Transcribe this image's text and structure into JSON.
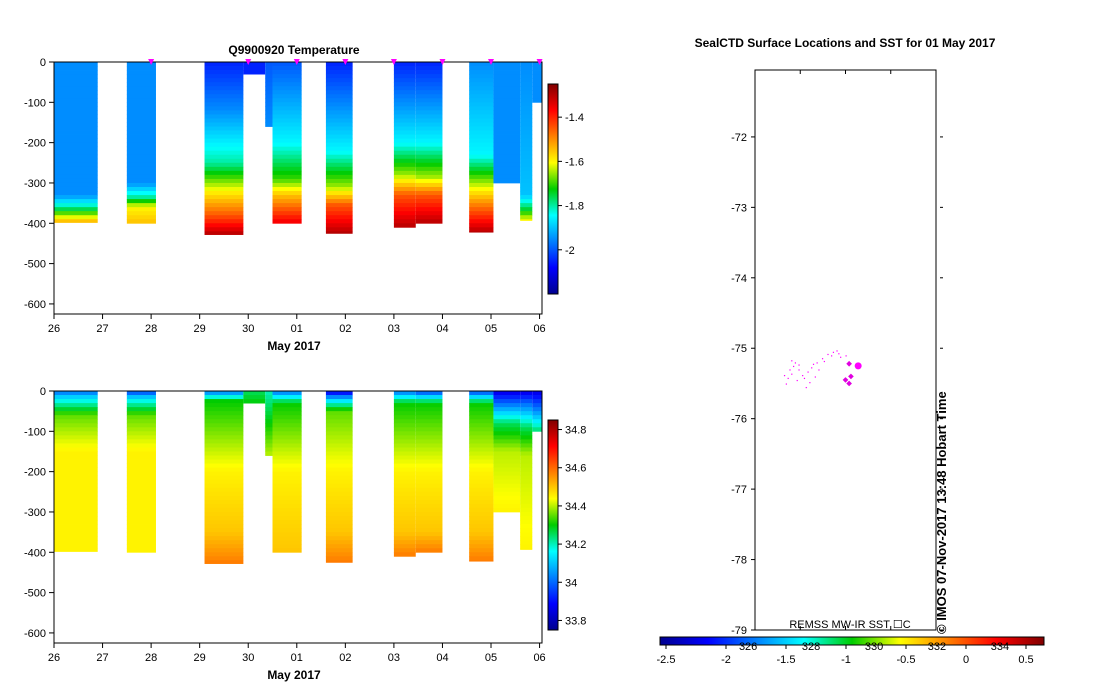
{
  "chart_data": [
    {
      "type": "heatmap",
      "title": "Q9900920  Temperature",
      "xlabel": "May 2017",
      "ylabel": "",
      "x_ticks": [
        "26",
        "27",
        "28",
        "29",
        "30",
        "01",
        "02",
        "03",
        "04",
        "05",
        "06"
      ],
      "x_range_days": [
        0,
        10.05
      ],
      "y_ticks": [
        "0",
        "-100",
        "-200",
        "-300",
        "-400",
        "-500",
        "-600"
      ],
      "ylim": [
        -625,
        0
      ],
      "colorbar": {
        "ticks": [
          "-1.4",
          "-1.6",
          "-1.8",
          "-2"
        ],
        "range": [
          -2.2,
          -1.25
        ]
      },
      "surfacing_markers_days": [
        2.0,
        4.0,
        5.0,
        6.0,
        7.0,
        8.0,
        9.0,
        10.0
      ],
      "profiles": [
        {
          "start_day": 0.0,
          "end_day": 0.9,
          "max_depth": 398,
          "top_value": -1.95,
          "layers": [
            [
              0,
              -1.95
            ],
            [
              330,
              -1.95
            ],
            [
              360,
              -1.8
            ],
            [
              380,
              -1.65
            ],
            [
              395,
              -1.55
            ]
          ]
        },
        {
          "start_day": 1.5,
          "end_day": 2.1,
          "max_depth": 400,
          "top_value": -1.95,
          "layers": [
            [
              0,
              -1.95
            ],
            [
              300,
              -1.95
            ],
            [
              335,
              -1.8
            ],
            [
              360,
              -1.6
            ],
            [
              398,
              -1.55
            ]
          ]
        },
        {
          "start_day": 3.1,
          "end_day": 3.9,
          "max_depth": 428,
          "top_value": -2.05,
          "layers": [
            [
              0,
              -2.05
            ],
            [
              120,
              -1.95
            ],
            [
              250,
              -1.8
            ],
            [
              320,
              -1.6
            ],
            [
              380,
              -1.45
            ],
            [
              428,
              -1.3
            ]
          ]
        },
        {
          "start_day": 3.9,
          "end_day": 4.35,
          "max_depth": 30,
          "top_value": -2.05,
          "layers": [
            [
              0,
              -2.05
            ],
            [
              30,
              -2.05
            ]
          ]
        },
        {
          "start_day": 4.35,
          "end_day": 4.5,
          "max_depth": 160,
          "top_value": -2.0,
          "layers": [
            [
              0,
              -2.0
            ],
            [
              160,
              -1.95
            ]
          ]
        },
        {
          "start_day": 4.5,
          "end_day": 5.1,
          "max_depth": 400,
          "top_value": -2.0,
          "layers": [
            [
              0,
              -2.0
            ],
            [
              200,
              -1.85
            ],
            [
              290,
              -1.7
            ],
            [
              330,
              -1.55
            ],
            [
              400,
              -1.35
            ]
          ]
        },
        {
          "start_day": 5.6,
          "end_day": 6.15,
          "max_depth": 425,
          "top_value": -2.05,
          "layers": [
            [
              0,
              -2.05
            ],
            [
              220,
              -1.85
            ],
            [
              310,
              -1.65
            ],
            [
              355,
              -1.45
            ],
            [
              425,
              -1.3
            ]
          ]
        },
        {
          "start_day": 7.0,
          "end_day": 7.45,
          "max_depth": 410,
          "top_value": -2.05,
          "layers": [
            [
              0,
              -2.05
            ],
            [
              200,
              -1.85
            ],
            [
              280,
              -1.65
            ],
            [
              330,
              -1.45
            ],
            [
              410,
              -1.3
            ]
          ]
        },
        {
          "start_day": 7.45,
          "end_day": 8.0,
          "max_depth": 400,
          "top_value": -2.05,
          "layers": [
            [
              0,
              -2.05
            ],
            [
              200,
              -1.85
            ],
            [
              285,
              -1.65
            ],
            [
              330,
              -1.45
            ],
            [
              400,
              -1.3
            ]
          ]
        },
        {
          "start_day": 8.55,
          "end_day": 9.05,
          "max_depth": 422,
          "top_value": -1.95,
          "layers": [
            [
              0,
              -1.95
            ],
            [
              230,
              -1.85
            ],
            [
              300,
              -1.65
            ],
            [
              350,
              -1.5
            ],
            [
              422,
              -1.3
            ]
          ]
        },
        {
          "start_day": 9.05,
          "end_day": 9.6,
          "max_depth": 300,
          "top_value": -1.95,
          "layers": [
            [
              0,
              -1.95
            ],
            [
              300,
              -1.95
            ]
          ]
        },
        {
          "start_day": 9.6,
          "end_day": 9.85,
          "max_depth": 393,
          "top_value": -1.95,
          "layers": [
            [
              0,
              -1.95
            ],
            [
              330,
              -1.9
            ],
            [
              365,
              -1.75
            ],
            [
              393,
              -1.6
            ]
          ]
        },
        {
          "start_day": 9.85,
          "end_day": 10.05,
          "max_depth": 100,
          "top_value": -1.95,
          "layers": [
            [
              0,
              -1.95
            ],
            [
              100,
              -1.95
            ]
          ]
        }
      ]
    },
    {
      "type": "heatmap",
      "title": "",
      "xlabel": "May 2017",
      "ylabel": "",
      "x_ticks": [
        "26",
        "27",
        "28",
        "29",
        "30",
        "01",
        "02",
        "03",
        "04",
        "05",
        "06"
      ],
      "x_range_days": [
        0,
        10.05
      ],
      "y_ticks": [
        "0",
        "-100",
        "-200",
        "-300",
        "-400",
        "-500",
        "-600"
      ],
      "ylim": [
        -625,
        0
      ],
      "colorbar": {
        "ticks": [
          "34.8",
          "34.6",
          "34.4",
          "34.2",
          "34",
          "33.8"
        ],
        "range": [
          33.75,
          34.85
        ]
      },
      "profiles": [
        {
          "start_day": 0.0,
          "end_day": 0.9,
          "max_depth": 398,
          "top_value": 34.0,
          "layers": [
            [
              0,
              34.0
            ],
            [
              20,
              34.15
            ],
            [
              60,
              34.35
            ],
            [
              150,
              34.45
            ],
            [
              398,
              34.45
            ]
          ]
        },
        {
          "start_day": 1.5,
          "end_day": 2.1,
          "max_depth": 400,
          "top_value": 33.95,
          "layers": [
            [
              0,
              33.95
            ],
            [
              20,
              34.15
            ],
            [
              60,
              34.35
            ],
            [
              150,
              34.45
            ],
            [
              400,
              34.45
            ]
          ]
        },
        {
          "start_day": 3.1,
          "end_day": 3.9,
          "max_depth": 428,
          "top_value": 34.0,
          "layers": [
            [
              0,
              34.0
            ],
            [
              25,
              34.3
            ],
            [
              200,
              34.45
            ],
            [
              350,
              34.5
            ],
            [
              428,
              34.58
            ]
          ]
        },
        {
          "start_day": 3.9,
          "end_day": 4.35,
          "max_depth": 30,
          "top_value": 34.25,
          "layers": [
            [
              0,
              34.25
            ],
            [
              30,
              34.3
            ]
          ]
        },
        {
          "start_day": 4.35,
          "end_day": 4.5,
          "max_depth": 160,
          "top_value": 34.2,
          "layers": [
            [
              0,
              34.2
            ],
            [
              160,
              34.4
            ]
          ]
        },
        {
          "start_day": 4.5,
          "end_day": 5.1,
          "max_depth": 400,
          "top_value": 34.0,
          "layers": [
            [
              0,
              34.0
            ],
            [
              30,
              34.3
            ],
            [
              200,
              34.45
            ],
            [
              400,
              34.5
            ]
          ]
        },
        {
          "start_day": 5.6,
          "end_day": 6.15,
          "max_depth": 425,
          "top_value": 33.85,
          "layers": [
            [
              0,
              33.85
            ],
            [
              20,
              34.1
            ],
            [
              50,
              34.35
            ],
            [
              200,
              34.45
            ],
            [
              350,
              34.5
            ],
            [
              425,
              34.58
            ]
          ]
        },
        {
          "start_day": 7.0,
          "end_day": 7.45,
          "max_depth": 410,
          "top_value": 34.0,
          "layers": [
            [
              0,
              34.0
            ],
            [
              30,
              34.3
            ],
            [
              200,
              34.45
            ],
            [
              350,
              34.5
            ],
            [
              410,
              34.58
            ]
          ]
        },
        {
          "start_day": 7.45,
          "end_day": 8.0,
          "max_depth": 400,
          "top_value": 33.95,
          "layers": [
            [
              0,
              33.95
            ],
            [
              30,
              34.3
            ],
            [
              200,
              34.45
            ],
            [
              350,
              34.5
            ],
            [
              400,
              34.58
            ]
          ]
        },
        {
          "start_day": 8.55,
          "end_day": 9.05,
          "max_depth": 422,
          "top_value": 33.95,
          "layers": [
            [
              0,
              33.95
            ],
            [
              30,
              34.3
            ],
            [
              200,
              34.45
            ],
            [
              350,
              34.5
            ],
            [
              422,
              34.58
            ]
          ]
        },
        {
          "start_day": 9.05,
          "end_day": 9.6,
          "max_depth": 300,
          "top_value": 33.85,
          "layers": [
            [
              0,
              33.85
            ],
            [
              30,
              34.0
            ],
            [
              80,
              34.25
            ],
            [
              150,
              34.4
            ],
            [
              300,
              34.45
            ]
          ]
        },
        {
          "start_day": 9.6,
          "end_day": 9.85,
          "max_depth": 393,
          "top_value": 33.85,
          "layers": [
            [
              0,
              33.85
            ],
            [
              30,
              34.0
            ],
            [
              90,
              34.25
            ],
            [
              160,
              34.4
            ],
            [
              393,
              34.45
            ]
          ]
        },
        {
          "start_day": 9.85,
          "end_day": 10.05,
          "max_depth": 100,
          "top_value": 33.85,
          "layers": [
            [
              0,
              33.85
            ],
            [
              40,
              34.0
            ],
            [
              100,
              34.25
            ]
          ]
        }
      ]
    },
    {
      "type": "scatter",
      "title": "SealCTD Surface Locations and SST for 01 May 2017",
      "xlabel": "",
      "ylabel": "",
      "y_ticks": [
        "-72",
        "-73",
        "-74",
        "-75",
        "-76",
        "-77",
        "-78",
        "-79"
      ],
      "ylim": [
        -79,
        -71.05
      ],
      "x_range": [
        0,
        1
      ],
      "track_points": [
        [
          0.2,
          -75.17
        ],
        [
          0.22,
          -75.2
        ],
        [
          0.24,
          -75.23
        ],
        [
          0.21,
          -75.25
        ],
        [
          0.19,
          -75.3
        ],
        [
          0.2,
          -75.36
        ],
        [
          0.18,
          -75.42
        ],
        [
          0.17,
          -75.5
        ],
        [
          0.23,
          -75.45
        ],
        [
          0.26,
          -75.38
        ],
        [
          0.29,
          -75.33
        ],
        [
          0.31,
          -75.27
        ],
        [
          0.34,
          -75.2
        ],
        [
          0.37,
          -75.14
        ],
        [
          0.4,
          -75.08
        ],
        [
          0.43,
          -75.05
        ],
        [
          0.46,
          -75.07
        ],
        [
          0.47,
          -75.12
        ],
        [
          0.3,
          -75.48
        ],
        [
          0.33,
          -75.4
        ],
        [
          0.28,
          -75.55
        ],
        [
          0.38,
          -75.18
        ],
        [
          0.42,
          -75.1
        ],
        [
          0.45,
          -75.03
        ],
        [
          0.24,
          -75.3
        ],
        [
          0.35,
          -75.3
        ],
        [
          0.27,
          -75.42
        ],
        [
          0.16,
          -75.38
        ],
        [
          0.32,
          -75.22
        ],
        [
          0.5,
          -75.1
        ]
      ],
      "recent_points": [
        [
          0.52,
          -75.22
        ],
        [
          0.5,
          -75.45
        ],
        [
          0.53,
          -75.4
        ],
        [
          0.52,
          -75.5
        ]
      ],
      "current_point": [
        0.57,
        -75.25
      ],
      "colorbar": {
        "ticks": [
          "-2.5",
          "-2",
          "-1.5",
          "-1",
          "-0.5",
          "0",
          "0.5"
        ],
        "range": [
          -2.55,
          0.65
        ],
        "secondary_ticks": [
          "326",
          "328",
          "330",
          "332",
          "334"
        ],
        "secondary_range": [
          323.2,
          335.4
        ]
      },
      "source_note": "REMSS MW-IR SST ☐C",
      "credit": "© IMOS 07-Nov-2017 13:48 Hobart Time"
    }
  ]
}
